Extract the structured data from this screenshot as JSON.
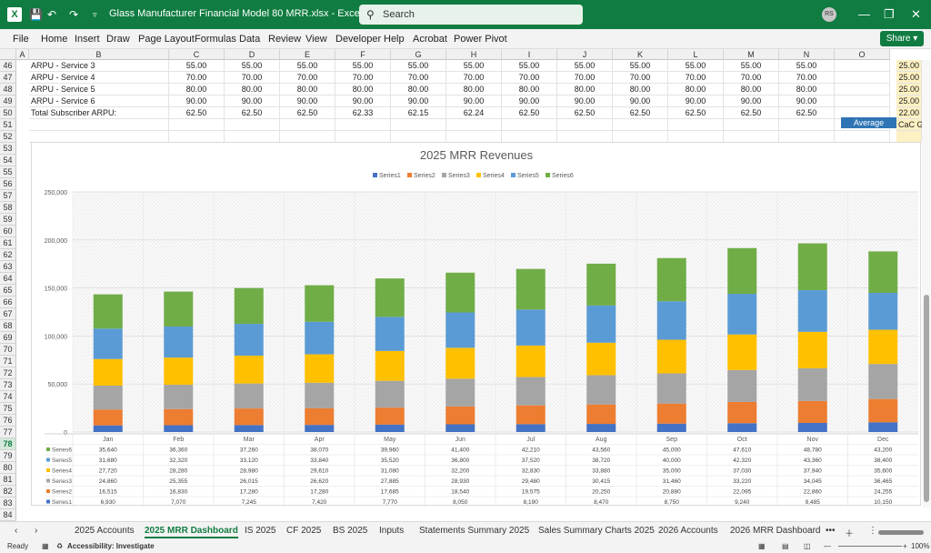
{
  "titlebar": {
    "title": "Glass Manufacturer Financial Model 80 MRR.xlsx  -  Excel",
    "search_placeholder": "Search",
    "user_initials": "RS"
  },
  "menu": [
    "File",
    "Home",
    "Insert",
    "Draw",
    "Page Layout",
    "Formulas",
    "Data",
    "Review",
    "View",
    "Developer",
    "Help",
    "Acrobat",
    "Power Pivot"
  ],
  "share_label": "Share",
  "columns": [
    "A",
    "B",
    "C",
    "D",
    "E",
    "F",
    "G",
    "H",
    "I",
    "J",
    "K",
    "L",
    "M",
    "N",
    "O"
  ],
  "rows": [
    "46",
    "47",
    "48",
    "49",
    "50",
    "51",
    "52",
    "53",
    "54",
    "55",
    "56",
    "57",
    "58",
    "59",
    "60",
    "61",
    "62",
    "63",
    "64",
    "65",
    "66",
    "67",
    "68",
    "69",
    "70",
    "71",
    "72",
    "73",
    "74",
    "75",
    "76",
    "77",
    "78",
    "79",
    "80",
    "81",
    "82",
    "83",
    "84"
  ],
  "sheet_rows": [
    {
      "label": "ARPU - Service 3",
      "values": [
        "55.00",
        "55.00",
        "55.00",
        "55.00",
        "55.00",
        "55.00",
        "55.00",
        "55.00",
        "55.00",
        "55.00",
        "55.00",
        "55.00"
      ],
      "extra": "25.00"
    },
    {
      "label": "ARPU - Service 4",
      "values": [
        "70.00",
        "70.00",
        "70.00",
        "70.00",
        "70.00",
        "70.00",
        "70.00",
        "70.00",
        "70.00",
        "70.00",
        "70.00",
        "70.00"
      ],
      "extra": "25.00"
    },
    {
      "label": "ARPU - Service 5",
      "values": [
        "80.00",
        "80.00",
        "80.00",
        "80.00",
        "80.00",
        "80.00",
        "80.00",
        "80.00",
        "80.00",
        "80.00",
        "80.00",
        "80.00"
      ],
      "extra": "25.00"
    },
    {
      "label": "ARPU - Service 6",
      "values": [
        "90.00",
        "90.00",
        "90.00",
        "90.00",
        "90.00",
        "90.00",
        "90.00",
        "90.00",
        "90.00",
        "90.00",
        "90.00",
        "90.00"
      ],
      "extra": "25.00"
    },
    {
      "label": "Total Subscriber ARPU:",
      "values": [
        "62.50",
        "62.50",
        "62.50",
        "62.33",
        "62.15",
        "62.24",
        "62.50",
        "62.50",
        "62.50",
        "62.50",
        "62.50",
        "62.50"
      ],
      "extra": "22.00"
    }
  ],
  "average_label": "Average",
  "cac_label": "CaC G",
  "chart_data": {
    "type": "bar",
    "stacked": true,
    "title": "2025 MRR Revenues",
    "legend_position": "top",
    "ylim": [
      0,
      250000
    ],
    "yticks": [
      "0",
      "50,000",
      "100,000",
      "150,000",
      "200,000",
      "250,000"
    ],
    "categories": [
      "Jan",
      "Feb",
      "Mar",
      "Apr",
      "May",
      "Jun",
      "Jul",
      "Aug",
      "Sep",
      "Oct",
      "Nov",
      "Dec"
    ],
    "series": [
      {
        "name": "Series1",
        "color": "#4472c4",
        "values": [
          6930,
          7070,
          7245,
          7420,
          7770,
          8050,
          8190,
          8470,
          8750,
          9240,
          9485,
          10150
        ]
      },
      {
        "name": "Series2",
        "color": "#ed7d31",
        "values": [
          16515,
          16830,
          17280,
          17280,
          17685,
          18540,
          19575,
          20250,
          20880,
          22095,
          22860,
          24255
        ]
      },
      {
        "name": "Series3",
        "color": "#a5a5a5",
        "values": [
          24860,
          25355,
          26015,
          26620,
          27885,
          28930,
          29480,
          30415,
          31460,
          33220,
          34045,
          36465
        ]
      },
      {
        "name": "Series4",
        "color": "#ffc000",
        "values": [
          27720,
          28280,
          28980,
          29610,
          31080,
          32200,
          32830,
          33880,
          35000,
          37030,
          37940,
          35600
        ]
      },
      {
        "name": "Series5",
        "color": "#5b9bd5",
        "values": [
          31680,
          32320,
          33120,
          33840,
          35520,
          36800,
          37520,
          38720,
          40000,
          42320,
          43360,
          38400
        ]
      },
      {
        "name": "Series6",
        "color": "#70ad47",
        "values": [
          35640,
          36360,
          37260,
          38070,
          39960,
          41400,
          42210,
          43560,
          45000,
          47610,
          48780,
          43200
        ]
      }
    ],
    "table_labels": [
      [
        "35,640",
        "36,360",
        "37,260",
        "38,070",
        "39,960",
        "41,400",
        "42,210",
        "43,560",
        "45,000",
        "47,610",
        "48,780",
        "43,200"
      ],
      [
        "31,680",
        "32,320",
        "33,120",
        "33,840",
        "35,520",
        "36,800",
        "37,520",
        "38,720",
        "40,000",
        "42,320",
        "43,360",
        "38,400"
      ],
      [
        "27,720",
        "28,280",
        "28,980",
        "29,610",
        "31,080",
        "32,200",
        "32,830",
        "33,880",
        "35,000",
        "37,030",
        "37,940",
        "35,600"
      ],
      [
        "24,860",
        "25,355",
        "26,015",
        "26,620",
        "27,885",
        "28,930",
        "29,480",
        "30,415",
        "31,460",
        "33,220",
        "34,045",
        "36,465"
      ],
      [
        "16,515",
        "16,830",
        "17,280",
        "17,280",
        "17,685",
        "18,540",
        "19,575",
        "20,250",
        "20,880",
        "22,095",
        "22,860",
        "24,255"
      ],
      [
        "6,930",
        "7,070",
        "7,245",
        "7,420",
        "7,770",
        "8,050",
        "8,190",
        "8,470",
        "8,750",
        "9,240",
        "9,485",
        "10,150"
      ]
    ],
    "table_series_order": [
      "Series6",
      "Series5",
      "Series4",
      "Series3",
      "Series2",
      "Series1"
    ]
  },
  "tabs": [
    "2025 Accounts",
    "2025 MRR Dashboard",
    "IS 2025",
    "CF 2025",
    "BS 2025",
    "Inputs",
    "Statements Summary 2025",
    "Sales Summary Charts 2025",
    "2026 Accounts",
    "2026 MRR Dashboard"
  ],
  "active_tab": "2025 MRR Dashboard",
  "status": {
    "ready": "Ready",
    "accessibility": "Accessibility: Investigate",
    "zoom": "100%"
  }
}
